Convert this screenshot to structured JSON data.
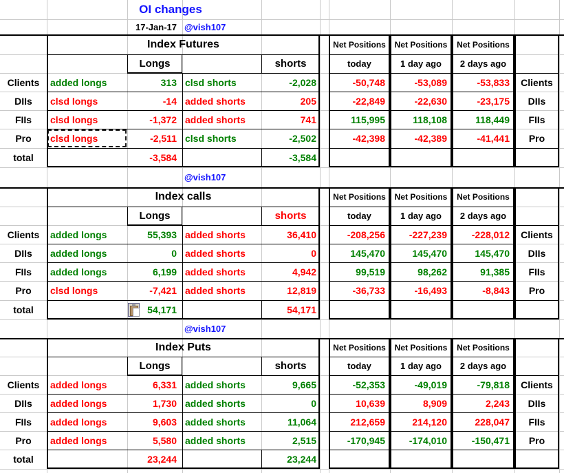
{
  "title": "OI changes",
  "date": "17-Jan-17",
  "handle": "@vish107",
  "total_label": "total",
  "row_labels": [
    "Clients",
    "DIIs",
    "FIIs",
    "Pro"
  ],
  "headers": {
    "net": "Net Positions",
    "net_subs": [
      "today",
      "1 day ago",
      "2 days ago"
    ],
    "longs": "Longs",
    "shorts": "shorts"
  },
  "colors": {
    "green": "#008000",
    "red": "#ff0000",
    "blue": "#1414ff",
    "gridline": "#c9c9c9",
    "border": "#000000"
  },
  "sections": [
    {
      "name": "Index Futures",
      "shorts_header_color": "black",
      "rows": [
        {
          "label": "Clients",
          "cells": [
            {
              "t": "added longs",
              "c": "green"
            },
            {
              "t": "313",
              "c": "green"
            },
            {
              "t": "clsd shorts",
              "c": "green"
            },
            {
              "t": "-2,028",
              "c": "green"
            }
          ],
          "net": [
            {
              "t": "-50,748",
              "c": "red"
            },
            {
              "t": "-53,089",
              "c": "red"
            },
            {
              "t": "-53,833",
              "c": "red"
            }
          ]
        },
        {
          "label": "DIIs",
          "cells": [
            {
              "t": "clsd longs",
              "c": "red"
            },
            {
              "t": "-14",
              "c": "red"
            },
            {
              "t": "added shorts",
              "c": "red"
            },
            {
              "t": "205",
              "c": "red"
            }
          ],
          "net": [
            {
              "t": "-22,849",
              "c": "red"
            },
            {
              "t": "-22,630",
              "c": "red"
            },
            {
              "t": "-23,175",
              "c": "red"
            }
          ]
        },
        {
          "label": "FIIs",
          "cells": [
            {
              "t": "clsd longs",
              "c": "red"
            },
            {
              "t": "-1,372",
              "c": "red"
            },
            {
              "t": "added shorts",
              "c": "red"
            },
            {
              "t": "741",
              "c": "red"
            }
          ],
          "net": [
            {
              "t": "115,995",
              "c": "green"
            },
            {
              "t": "118,108",
              "c": "green"
            },
            {
              "t": "118,449",
              "c": "green"
            }
          ]
        },
        {
          "label": "Pro",
          "cells": [
            {
              "t": "clsd longs",
              "c": "red"
            },
            {
              "t": "-2,511",
              "c": "red"
            },
            {
              "t": "clsd shorts",
              "c": "green"
            },
            {
              "t": "-2,502",
              "c": "green"
            }
          ],
          "net": [
            {
              "t": "-42,398",
              "c": "red"
            },
            {
              "t": "-42,389",
              "c": "red"
            },
            {
              "t": "-41,441",
              "c": "red"
            }
          ]
        }
      ],
      "total": {
        "longs": {
          "t": "-3,584",
          "c": "red"
        },
        "shorts": {
          "t": "-3,584",
          "c": "green"
        }
      }
    },
    {
      "name": "Index calls",
      "shorts_header_color": "red",
      "rows": [
        {
          "label": "Clients",
          "cells": [
            {
              "t": "added longs",
              "c": "green"
            },
            {
              "t": "55,393",
              "c": "green"
            },
            {
              "t": "added shorts",
              "c": "red"
            },
            {
              "t": "36,410",
              "c": "red"
            }
          ],
          "net": [
            {
              "t": "-208,256",
              "c": "red"
            },
            {
              "t": "-227,239",
              "c": "red"
            },
            {
              "t": "-228,012",
              "c": "red"
            }
          ]
        },
        {
          "label": "DIIs",
          "cells": [
            {
              "t": "added longs",
              "c": "green"
            },
            {
              "t": "0",
              "c": "green"
            },
            {
              "t": "added shorts",
              "c": "red"
            },
            {
              "t": "0",
              "c": "red"
            }
          ],
          "net": [
            {
              "t": "145,470",
              "c": "green"
            },
            {
              "t": "145,470",
              "c": "green"
            },
            {
              "t": "145,470",
              "c": "green"
            }
          ]
        },
        {
          "label": "FIIs",
          "cells": [
            {
              "t": "added longs",
              "c": "green"
            },
            {
              "t": "6,199",
              "c": "green"
            },
            {
              "t": "added shorts",
              "c": "red"
            },
            {
              "t": "4,942",
              "c": "red"
            }
          ],
          "net": [
            {
              "t": "99,519",
              "c": "green"
            },
            {
              "t": "98,262",
              "c": "green"
            },
            {
              "t": "91,385",
              "c": "green"
            }
          ]
        },
        {
          "label": "Pro",
          "cells": [
            {
              "t": "clsd longs",
              "c": "red"
            },
            {
              "t": "-7,421",
              "c": "red"
            },
            {
              "t": "added shorts",
              "c": "red"
            },
            {
              "t": "12,819",
              "c": "red"
            }
          ],
          "net": [
            {
              "t": "-36,733",
              "c": "red"
            },
            {
              "t": "-16,493",
              "c": "red"
            },
            {
              "t": "-8,843",
              "c": "red"
            }
          ]
        }
      ],
      "total": {
        "longs": {
          "t": "54,171",
          "c": "green"
        },
        "shorts": {
          "t": "54,171",
          "c": "red"
        }
      }
    },
    {
      "name": "Index Puts",
      "shorts_header_color": "black",
      "rows": [
        {
          "label": "Clients",
          "cells": [
            {
              "t": "added longs",
              "c": "red"
            },
            {
              "t": "6,331",
              "c": "red"
            },
            {
              "t": "added shorts",
              "c": "green"
            },
            {
              "t": "9,665",
              "c": "green"
            }
          ],
          "net": [
            {
              "t": "-52,353",
              "c": "green"
            },
            {
              "t": "-49,019",
              "c": "green"
            },
            {
              "t": "-79,818",
              "c": "green"
            }
          ]
        },
        {
          "label": "DIIs",
          "cells": [
            {
              "t": "added longs",
              "c": "red"
            },
            {
              "t": "1,730",
              "c": "red"
            },
            {
              "t": "added shorts",
              "c": "green"
            },
            {
              "t": "0",
              "c": "green"
            }
          ],
          "net": [
            {
              "t": "10,639",
              "c": "red"
            },
            {
              "t": "8,909",
              "c": "red"
            },
            {
              "t": "2,243",
              "c": "red"
            }
          ]
        },
        {
          "label": "FIIs",
          "cells": [
            {
              "t": "added longs",
              "c": "red"
            },
            {
              "t": "9,603",
              "c": "red"
            },
            {
              "t": "added shorts",
              "c": "green"
            },
            {
              "t": "11,064",
              "c": "green"
            }
          ],
          "net": [
            {
              "t": "212,659",
              "c": "red"
            },
            {
              "t": "214,120",
              "c": "red"
            },
            {
              "t": "228,047",
              "c": "red"
            }
          ]
        },
        {
          "label": "Pro",
          "cells": [
            {
              "t": "added longs",
              "c": "red"
            },
            {
              "t": "5,580",
              "c": "red"
            },
            {
              "t": "added shorts",
              "c": "green"
            },
            {
              "t": "2,515",
              "c": "green"
            }
          ],
          "net": [
            {
              "t": "-170,945",
              "c": "green"
            },
            {
              "t": "-174,010",
              "c": "green"
            },
            {
              "t": "-150,471",
              "c": "green"
            }
          ]
        }
      ],
      "total": {
        "longs": {
          "t": "23,244",
          "c": "red"
        },
        "shorts": {
          "t": "23,244",
          "c": "green"
        }
      }
    }
  ]
}
